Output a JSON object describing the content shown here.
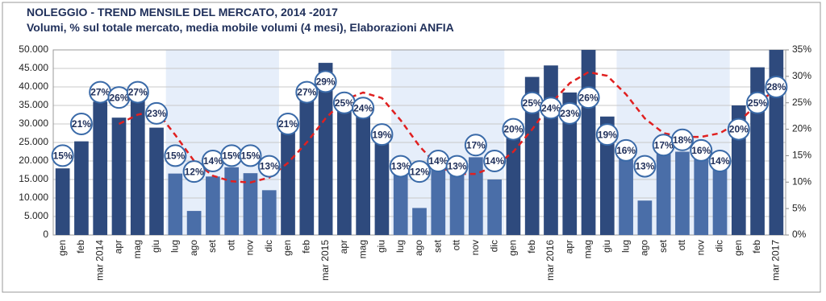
{
  "chart_data": {
    "type": "bar",
    "title": "NOLEGGIO - TREND MENSILE DEL MERCATO, 2014 -2017",
    "subtitle": "Volumi, % sul totale mercato, media mobile volumi (4 mesi), Elaborazioni  ANFIA",
    "categories": [
      "gen",
      "feb",
      "mar 2014",
      "apr",
      "mag",
      "giu",
      "lug",
      "ago",
      "set",
      "ott",
      "nov",
      "dic",
      "gen",
      "feb",
      "mar 2015",
      "apr",
      "mag",
      "giu",
      "lug",
      "ago",
      "set",
      "ott",
      "nov",
      "dic",
      "gen",
      "feb",
      "mar 2016",
      "apr",
      "mag",
      "giu",
      "lug",
      "ago",
      "set",
      "ott",
      "nov",
      "dic",
      "gen",
      "feb",
      "mar 2017"
    ],
    "values": [
      18000,
      25300,
      36000,
      31700,
      36500,
      29000,
      16600,
      6500,
      15800,
      18300,
      16700,
      12100,
      28000,
      37000,
      46500,
      35000,
      34500,
      27500,
      17500,
      7300,
      18000,
      16500,
      21000,
      15000,
      28500,
      42700,
      45800,
      38500,
      50000,
      32000,
      24000,
      9300,
      22000,
      22500,
      20500,
      20000,
      35000,
      45300,
      50000
    ],
    "bar_colors": [
      "#2e4a7d",
      "#2e4a7d",
      "#2e4a7d",
      "#2e4a7d",
      "#2e4a7d",
      "#2e4a7d",
      "#4a6ea8",
      "#4a6ea8",
      "#4a6ea8",
      "#4a6ea8",
      "#4a6ea8",
      "#4a6ea8",
      "#2e4a7d",
      "#2e4a7d",
      "#2e4a7d",
      "#2e4a7d",
      "#2e4a7d",
      "#2e4a7d",
      "#4a6ea8",
      "#4a6ea8",
      "#4a6ea8",
      "#4a6ea8",
      "#4a6ea8",
      "#4a6ea8",
      "#2e4a7d",
      "#2e4a7d",
      "#2e4a7d",
      "#2e4a7d",
      "#2e4a7d",
      "#2e4a7d",
      "#4a6ea8",
      "#4a6ea8",
      "#4a6ea8",
      "#4a6ea8",
      "#4a6ea8",
      "#4a6ea8",
      "#2e4a7d",
      "#2e4a7d",
      "#2e4a7d"
    ],
    "share": {
      "values": [
        15,
        21,
        27,
        26,
        27,
        23,
        15,
        12,
        14,
        15,
        15,
        13,
        21,
        27,
        29,
        25,
        24,
        19,
        13,
        12,
        14,
        13,
        17,
        14,
        20,
        25,
        24,
        23,
        26,
        19,
        16,
        13,
        17,
        18,
        16,
        14,
        20,
        25,
        28
      ],
      "value_labels": [
        "15%",
        "21%",
        "27%",
        "26%",
        "27%",
        "23%",
        "15%",
        "12%",
        "14%",
        "15%",
        "15%",
        "13%",
        "21%",
        "27%",
        "29%",
        "25%",
        "24%",
        "19%",
        "13%",
        "12%",
        "14%",
        "13%",
        "17%",
        "14%",
        "20%",
        "25%",
        "24%",
        "23%",
        "26%",
        "19%",
        "16%",
        "13%",
        "17%",
        "18%",
        "16%",
        "14%",
        "20%",
        "25%",
        "28%"
      ],
      "axis": "y2",
      "color": "#3a6aa8"
    },
    "moving_average": {
      "values": [
        null,
        null,
        null,
        30000,
        32500,
        33500,
        27000,
        20000,
        16000,
        14500,
        14200,
        15500,
        19500,
        25000,
        31500,
        36500,
        38500,
        37000,
        31000,
        24000,
        18500,
        16500,
        16500,
        18500,
        22500,
        28500,
        35500,
        41000,
        44000,
        43000,
        38000,
        31500,
        27500,
        26500,
        26500,
        27500,
        30500,
        35500,
        39500
      ],
      "color": "#e02020"
    },
    "ylim": [
      0,
      50000
    ],
    "yticks": [
      {
        "value": 0,
        "label": "0"
      },
      {
        "value": 5000,
        "label": "5.000"
      },
      {
        "value": 10000,
        "label": "10.000"
      },
      {
        "value": 15000,
        "label": "15.000"
      },
      {
        "value": 20000,
        "label": "20.000"
      },
      {
        "value": 25000,
        "label": "25.000"
      },
      {
        "value": 30000,
        "label": "30.000"
      },
      {
        "value": 35000,
        "label": "35.000"
      },
      {
        "value": 40000,
        "label": "40.000"
      },
      {
        "value": 45000,
        "label": "45.000"
      },
      {
        "value": 50000,
        "label": "50.000"
      }
    ],
    "y2lim": [
      0,
      35
    ],
    "y2ticks": [
      {
        "value": 0,
        "label": "0%"
      },
      {
        "value": 5,
        "label": "5%"
      },
      {
        "value": 10,
        "label": "10%"
      },
      {
        "value": 15,
        "label": "15%"
      },
      {
        "value": 20,
        "label": "20%"
      },
      {
        "value": 25,
        "label": "25%"
      },
      {
        "value": 30,
        "label": "30%"
      },
      {
        "value": 35,
        "label": "35%"
      }
    ],
    "grid": true,
    "band_color": "#e6eefa"
  }
}
